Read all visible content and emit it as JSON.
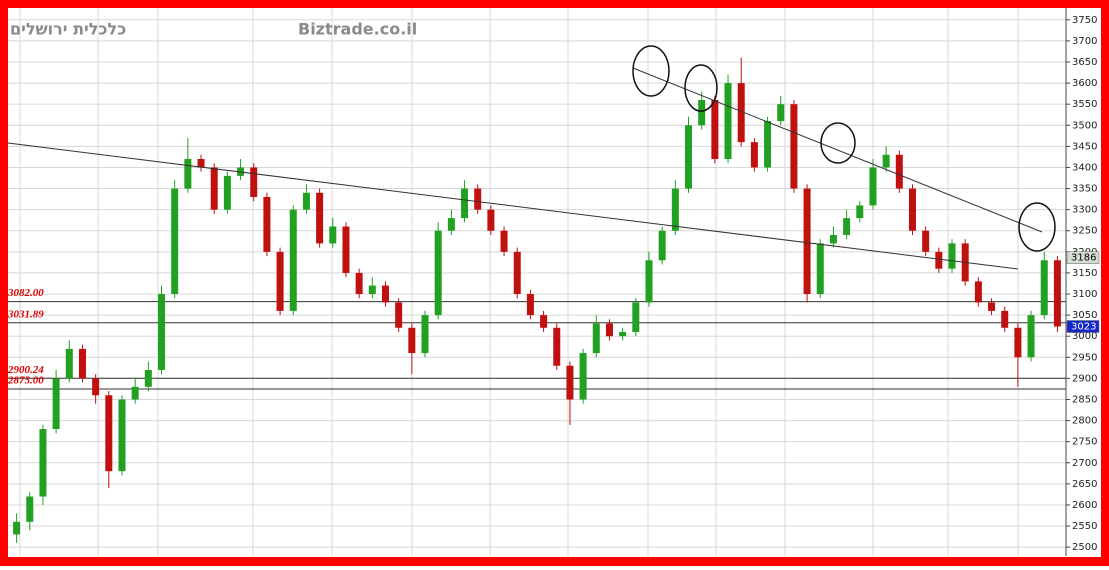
{
  "chart_data": {
    "type": "candlestick",
    "publisher": "כלכלית ירושלים",
    "site": "Biztrade.co.il",
    "ylim": [
      2479,
      3778
    ],
    "yticks": [
      2500,
      2550,
      2600,
      2650,
      2700,
      2750,
      2800,
      2850,
      2900,
      2950,
      3000,
      3050,
      3100,
      3150,
      3200,
      3250,
      3300,
      3350,
      3400,
      3450,
      3500,
      3550,
      3600,
      3650,
      3700,
      3750
    ],
    "grid": true,
    "up_color": "#22a022",
    "down_color": "#c01010",
    "open": [
      2530,
      2560,
      2620,
      2780,
      2900,
      2970,
      2900,
      2860,
      2680,
      2850,
      2880,
      2920,
      3100,
      3350,
      3420,
      3400,
      3300,
      3380,
      3400,
      3330,
      3200,
      3060,
      3300,
      3340,
      3220,
      3260,
      3150,
      3100,
      3120,
      3080,
      3020,
      2960,
      3050,
      3250,
      3280,
      3350,
      3300,
      3250,
      3200,
      3100,
      3050,
      3020,
      2930,
      2850,
      2960,
      3030,
      3000,
      3010,
      3080,
      3180,
      3250,
      3350,
      3500,
      3560,
      3420,
      3600,
      3460,
      3400,
      3510,
      3550,
      3350,
      3100,
      3220,
      3240,
      3280,
      3310,
      3400,
      3430,
      3350,
      3250,
      3200,
      3160,
      3220,
      3130,
      3080,
      3060,
      3020,
      2950,
      3050,
      3180
    ],
    "high": [
      2580,
      2630,
      2790,
      2920,
      2990,
      2980,
      2910,
      2870,
      2860,
      2900,
      2940,
      3120,
      3370,
      3470,
      3430,
      3410,
      3390,
      3420,
      3410,
      3340,
      3210,
      3310,
      3360,
      3350,
      3280,
      3270,
      3160,
      3140,
      3130,
      3090,
      3030,
      3060,
      3270,
      3300,
      3370,
      3360,
      3310,
      3260,
      3210,
      3110,
      3060,
      3030,
      2940,
      2970,
      3050,
      3040,
      3020,
      3090,
      3200,
      3260,
      3370,
      3520,
      3580,
      3570,
      3620,
      3660,
      3470,
      3520,
      3570,
      3560,
      3360,
      3230,
      3260,
      3300,
      3320,
      3420,
      3450,
      3440,
      3360,
      3260,
      3210,
      3230,
      3230,
      3140,
      3090,
      3070,
      3030,
      3060,
      3200,
      3190
    ],
    "low": [
      2510,
      2540,
      2600,
      2770,
      2890,
      2890,
      2840,
      2640,
      2670,
      2840,
      2870,
      2910,
      3090,
      3340,
      3390,
      3290,
      3290,
      3370,
      3320,
      3190,
      3050,
      3050,
      3290,
      3210,
      3210,
      3140,
      3090,
      3090,
      3070,
      3010,
      2910,
      2950,
      3040,
      3240,
      3270,
      3290,
      3240,
      3190,
      3090,
      3040,
      3010,
      2920,
      2790,
      2840,
      2950,
      2990,
      2990,
      3000,
      3070,
      3170,
      3240,
      3340,
      3490,
      3410,
      3410,
      3450,
      3390,
      3390,
      3500,
      3340,
      3080,
      3090,
      3210,
      3230,
      3270,
      3300,
      3390,
      3340,
      3240,
      3190,
      3150,
      3150,
      3120,
      3070,
      3050,
      3010,
      2880,
      2940,
      3040,
      3010
    ],
    "close": [
      2560,
      2620,
      2780,
      2900,
      2970,
      2900,
      2860,
      2680,
      2850,
      2880,
      2920,
      3100,
      3350,
      3420,
      3400,
      3300,
      3380,
      3400,
      3330,
      3200,
      3060,
      3300,
      3340,
      3220,
      3260,
      3150,
      3100,
      3120,
      3080,
      3020,
      2960,
      3050,
      3250,
      3280,
      3350,
      3300,
      3250,
      3200,
      3100,
      3050,
      3020,
      2930,
      2850,
      2960,
      3030,
      3000,
      3010,
      3080,
      3180,
      3250,
      3350,
      3500,
      3560,
      3420,
      3600,
      3460,
      3400,
      3510,
      3550,
      3350,
      3100,
      3220,
      3240,
      3280,
      3310,
      3400,
      3430,
      3350,
      3250,
      3200,
      3160,
      3220,
      3130,
      3080,
      3060,
      3020,
      2950,
      3050,
      3180,
      3023
    ],
    "levels": [
      {
        "value": 3082,
        "label": "3082.00"
      },
      {
        "value": 3031.89,
        "label": "3031.89"
      },
      {
        "value": 2900.24,
        "label": "2900.24"
      },
      {
        "value": 2875,
        "label": "2875.00"
      }
    ],
    "price_labels": [
      {
        "value": 3186,
        "color": "#d4dcd4",
        "text_color": "#000000"
      },
      {
        "value": 3023,
        "color": "#1428c8",
        "text_color": "#ffffff"
      }
    ]
  }
}
